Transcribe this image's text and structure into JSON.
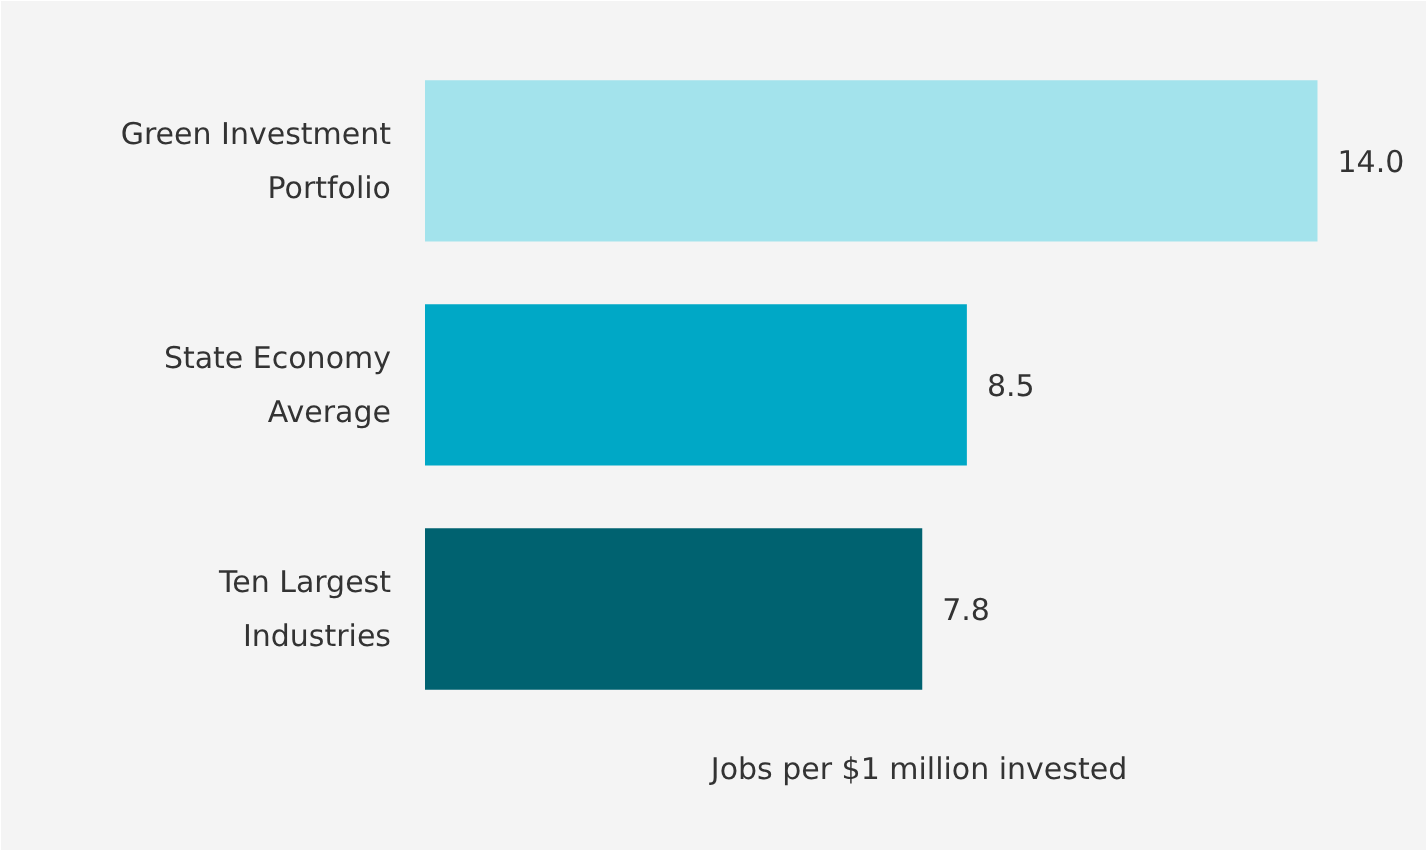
{
  "chart_data": {
    "type": "bar",
    "orientation": "horizontal",
    "xlabel": "Jobs per $1 million invested",
    "categories": [
      "Green Investment\nPortfolio",
      "State Economy\nAverage",
      "Ten Largest\nIndustries"
    ],
    "values": [
      14.0,
      8.5,
      7.8
    ],
    "colors": [
      "#a3e3ec",
      "#00a8c6",
      "#006270"
    ],
    "value_labels": [
      "14.0",
      "8.5",
      "7.8"
    ]
  }
}
